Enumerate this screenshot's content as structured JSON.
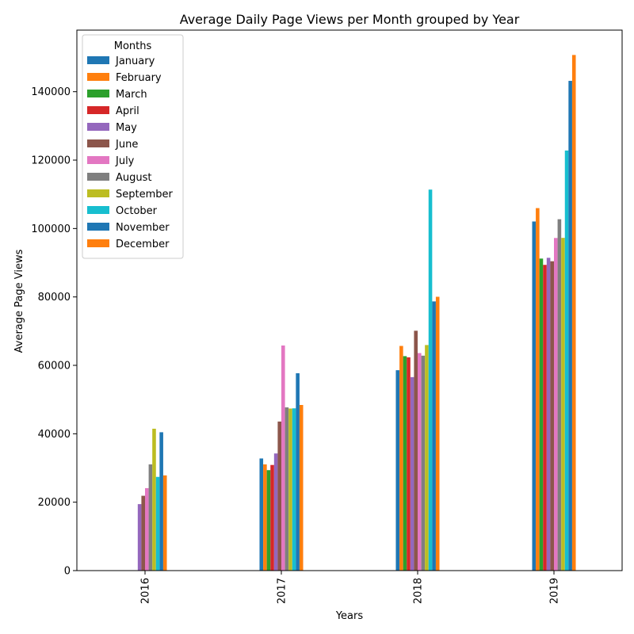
{
  "chart_data": {
    "type": "bar",
    "title": "Average Daily Page Views per Month grouped by Year",
    "xlabel": "Years",
    "ylabel": "Average Page Views",
    "categories": [
      "2016",
      "2017",
      "2018",
      "2019"
    ],
    "ylim": [
      0,
      158000
    ],
    "yticks": [
      0,
      20000,
      40000,
      60000,
      80000,
      100000,
      120000,
      140000
    ],
    "grid": false,
    "legend": {
      "title": "Months",
      "placement": "top-left"
    },
    "series": [
      {
        "name": "January",
        "color": "#1f77b4",
        "values": [
          null,
          32785,
          58580,
          102057
        ]
      },
      {
        "name": "February",
        "color": "#ff7f0e",
        "values": [
          null,
          31050,
          65679,
          105969
        ]
      },
      {
        "name": "March",
        "color": "#2ca02c",
        "values": [
          null,
          29369,
          62693,
          91214
        ]
      },
      {
        "name": "April",
        "color": "#d62728",
        "values": [
          null,
          30879,
          62350,
          89369
        ]
      },
      {
        "name": "May",
        "color": "#9467bd",
        "values": [
          19432,
          34244,
          56562,
          91439
        ]
      },
      {
        "name": "June",
        "color": "#8c564b",
        "values": [
          21875,
          43577,
          70117,
          90435
        ]
      },
      {
        "name": "July",
        "color": "#e377c2",
        "values": [
          24109,
          65806,
          63591,
          97236
        ]
      },
      {
        "name": "August",
        "color": "#7f7f7f",
        "values": [
          31049,
          47712,
          62831,
          102717
        ]
      },
      {
        "name": "September",
        "color": "#bcbd22",
        "values": [
          41476,
          47376,
          65941,
          97268
        ]
      },
      {
        "name": "October",
        "color": "#17becf",
        "values": [
          27398,
          47438,
          111378,
          122802
        ]
      },
      {
        "name": "November",
        "color": "#1f77b4",
        "values": [
          40448,
          57701,
          78688,
          143166
        ]
      },
      {
        "name": "December",
        "color": "#ff7f0e",
        "values": [
          27832,
          48420,
          80047,
          150733
        ]
      }
    ]
  }
}
